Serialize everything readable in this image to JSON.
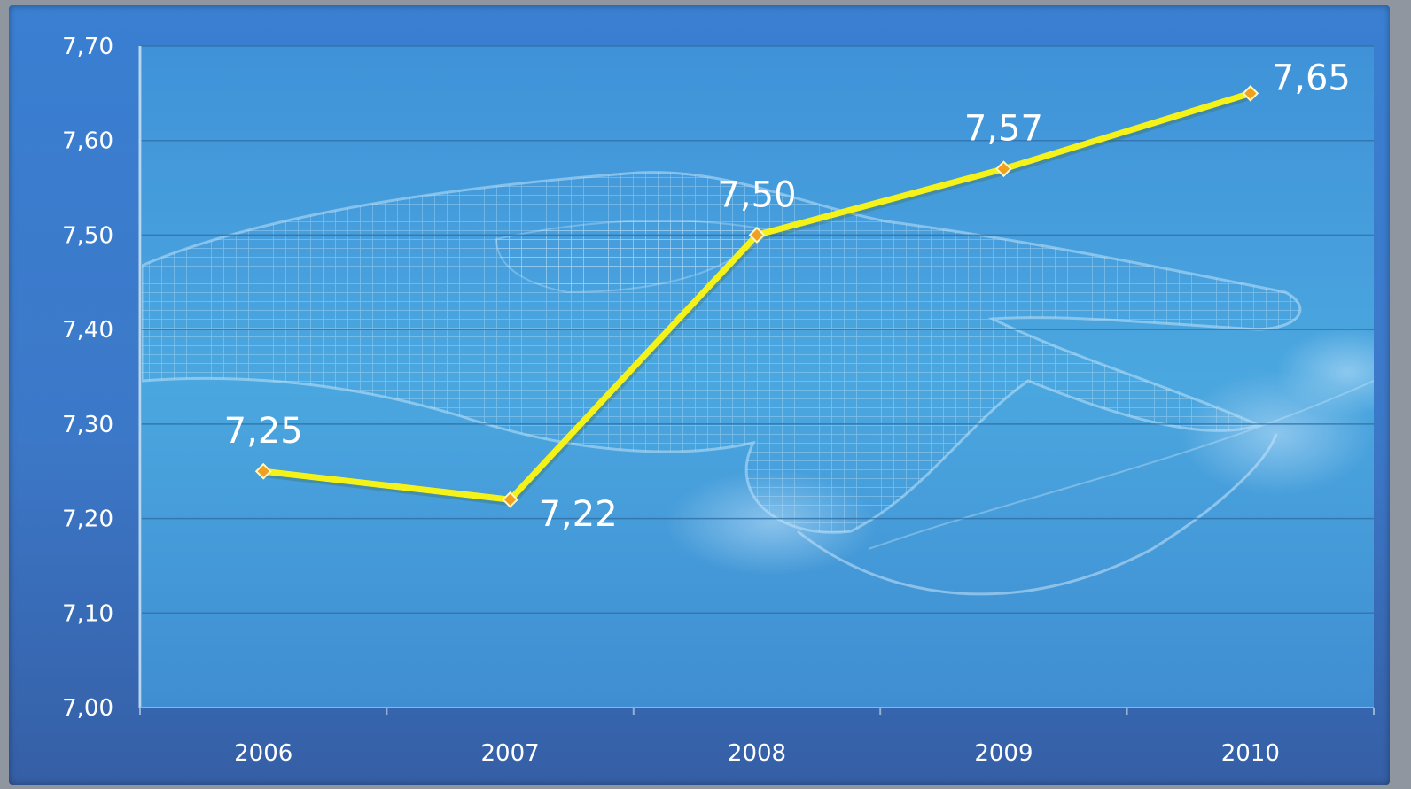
{
  "chart_data": {
    "type": "line",
    "title": "",
    "xlabel": "",
    "ylabel": "",
    "categories": [
      "2006",
      "2007",
      "2008",
      "2009",
      "2010"
    ],
    "series": [
      {
        "values": [
          7.25,
          7.22,
          7.5,
          7.57,
          7.65
        ]
      }
    ],
    "data_labels": [
      "7,25",
      "7,22",
      "7,50",
      "7,57",
      "7,65"
    ],
    "ylim": [
      7.0,
      7.7
    ],
    "y_ticks": [
      "7,00",
      "7,10",
      "7,20",
      "7,30",
      "7,40",
      "7,50",
      "7,60",
      "7,70"
    ],
    "grid": true,
    "legend": "none",
    "colors": {
      "line": "#f5f21a",
      "marker": "#f0a020",
      "background": "#3a7fd2",
      "plot_area": "#4c9fd8",
      "gridline": "#2f6fa5",
      "text": "#ffffff"
    }
  }
}
